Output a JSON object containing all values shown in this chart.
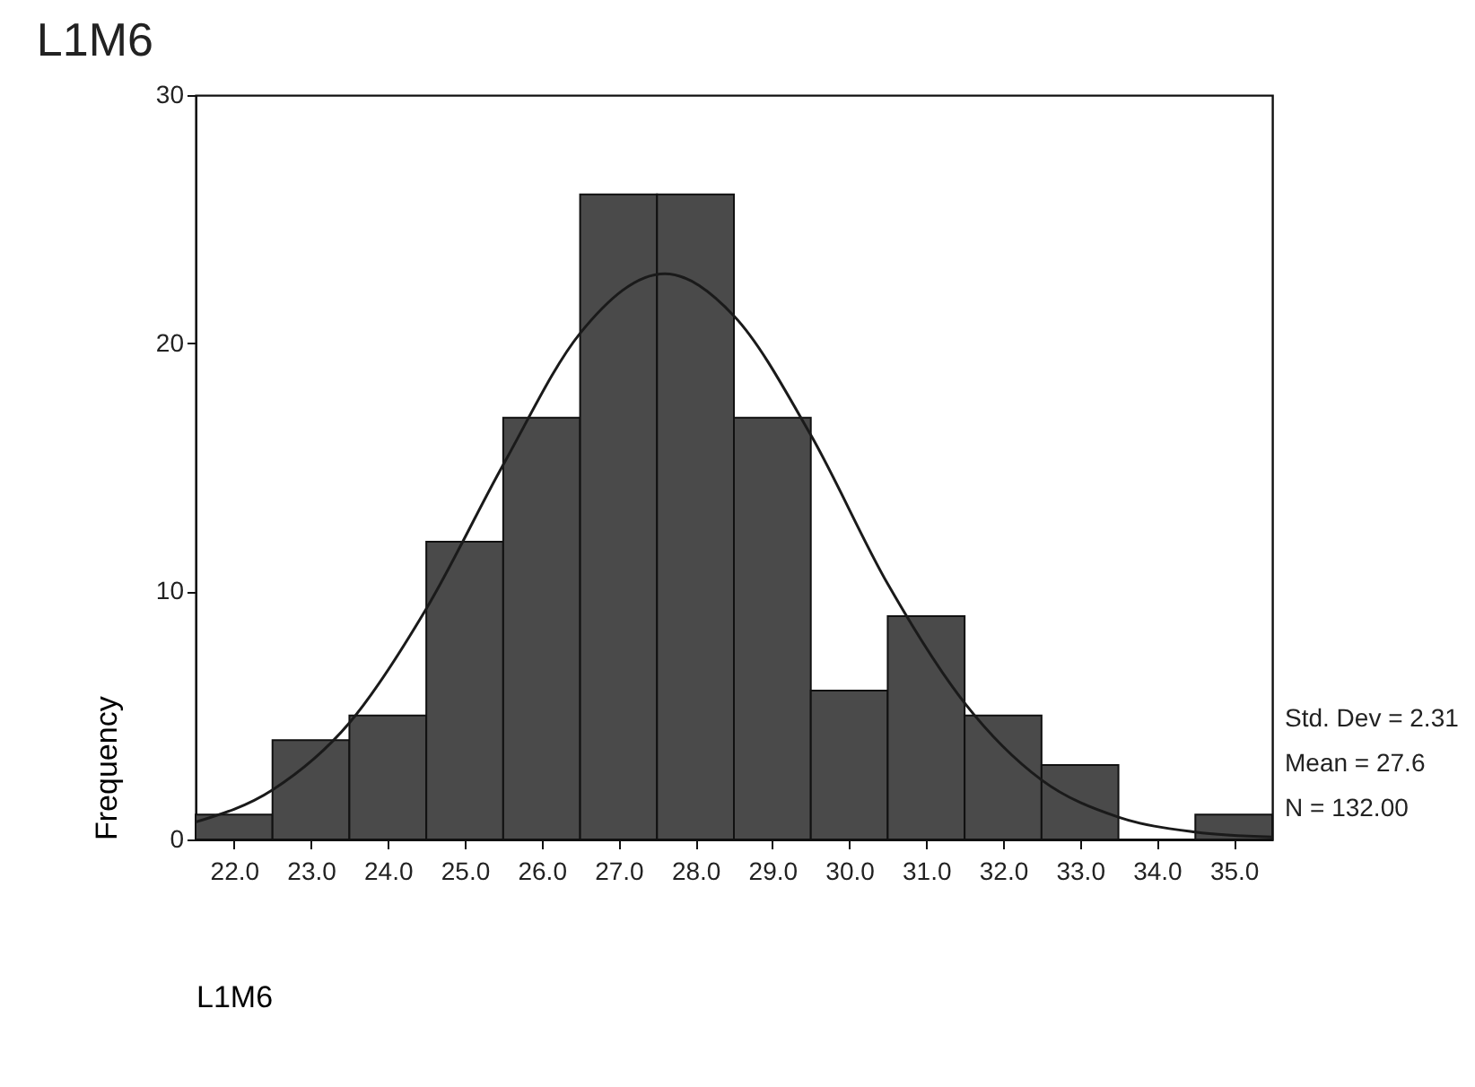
{
  "chart_data": {
    "type": "histogram",
    "title": "L1M6",
    "xlabel": "L1M6",
    "ylabel": "Frequency",
    "bins": [
      21.5,
      22.5,
      23.5,
      24.5,
      25.5,
      26.5,
      27.5,
      28.5,
      29.5,
      30.5,
      31.5,
      32.5,
      33.5,
      34.5,
      35.5
    ],
    "values": [
      1,
      4,
      5,
      12,
      17,
      26,
      26,
      17,
      6,
      9,
      5,
      3,
      0,
      1
    ],
    "color": "#4a4a4a",
    "series": [
      {
        "type": "line",
        "color": "#1a1a1a",
        "x": [
          21.5,
          22.5,
          23.5,
          24.5,
          25.5,
          26.5,
          27.6,
          28.5,
          29.5,
          30.5,
          31.5,
          32.5,
          33.5,
          34.5,
          35.5
        ],
        "values": [
          0.7,
          2.0,
          4.7,
          9.3,
          15.1,
          20.4,
          22.8,
          21.1,
          16.3,
          10.3,
          5.5,
          2.4,
          0.9,
          0.3,
          0.1
        ]
      }
    ],
    "xlim": [
      21.5,
      35.5
    ],
    "xticks": [
      {
        "value": 22,
        "label": "22.0"
      },
      {
        "value": 23,
        "label": "23.0"
      },
      {
        "value": 24,
        "label": "24.0"
      },
      {
        "value": 25,
        "label": "25.0"
      },
      {
        "value": 26,
        "label": "26.0"
      },
      {
        "value": 27,
        "label": "27.0"
      },
      {
        "value": 28,
        "label": "28.0"
      },
      {
        "value": 29,
        "label": "29.0"
      },
      {
        "value": 30,
        "label": "30.0"
      },
      {
        "value": 31,
        "label": "31.0"
      },
      {
        "value": 32,
        "label": "32.0"
      },
      {
        "value": 33,
        "label": "33.0"
      },
      {
        "value": 34,
        "label": "34.0"
      },
      {
        "value": 35,
        "label": "35.0"
      }
    ],
    "ylim": [
      0,
      30
    ],
    "yticks": [
      0,
      10,
      20,
      30
    ],
    "grid": false,
    "annotations": [
      "Std. Dev = 2.31",
      "Mean = 27.6",
      "N = 132.00"
    ]
  }
}
